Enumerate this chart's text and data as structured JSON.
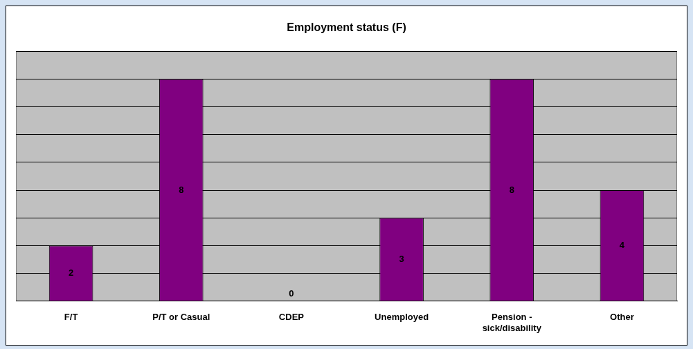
{
  "chart_data": {
    "type": "bar",
    "title": "Employment status (F)",
    "categories": [
      "F/T",
      "P/T or Casual",
      "CDEP",
      "Unemployed",
      "Pension - sick/disability",
      "Other"
    ],
    "values": [
      2,
      8,
      0,
      3,
      8,
      4
    ],
    "color": "#800080",
    "ylim": [
      0,
      9
    ],
    "yticks": [
      {
        "value": 0,
        "label": null
      },
      {
        "value": 1,
        "label": null
      },
      {
        "value": 2,
        "label": null
      },
      {
        "value": 3,
        "label": null
      },
      {
        "value": 4,
        "label": null
      },
      {
        "value": 5,
        "label": null
      },
      {
        "value": 6,
        "label": null
      },
      {
        "value": 7,
        "label": null
      },
      {
        "value": 8,
        "label": null
      },
      {
        "value": 9,
        "label": null
      }
    ],
    "grid": "y",
    "tick_labels": "x",
    "data_labels": true,
    "legend": false
  }
}
